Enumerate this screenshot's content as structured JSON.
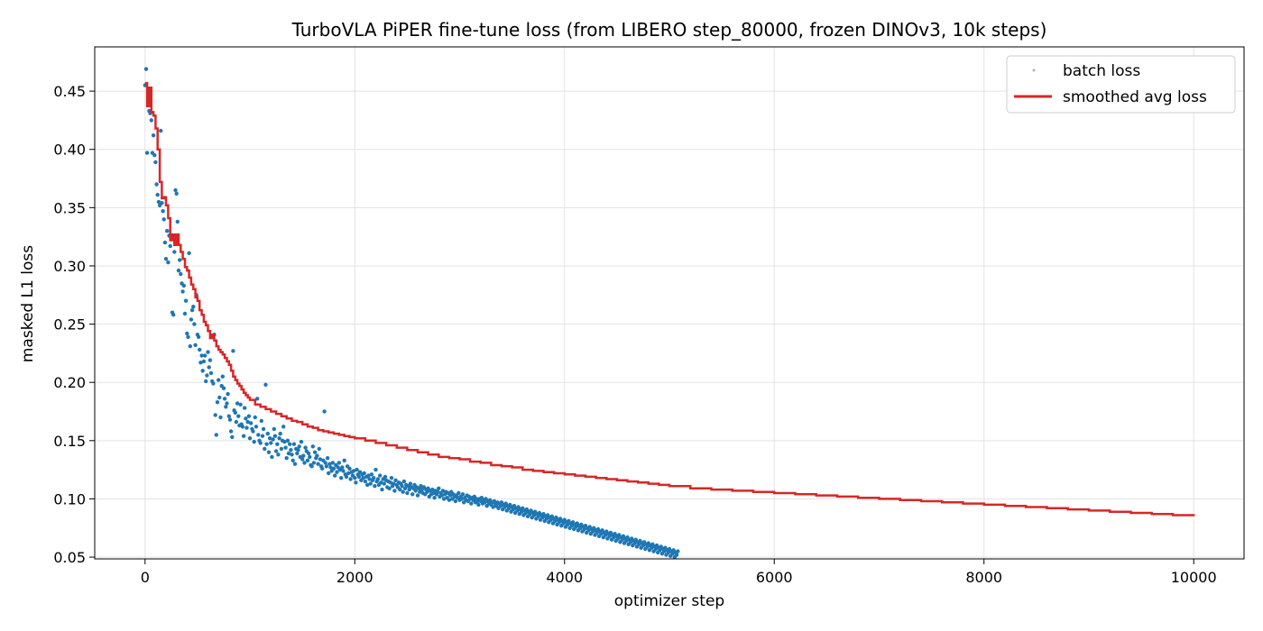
{
  "chart_data": {
    "type": "scatter",
    "title": "TurboVLA PiPER fine-tune loss (from LIBERO step_80000, frozen DINOv3, 10k steps)",
    "xlabel": "optimizer step",
    "ylabel": "masked L1 loss",
    "xlim": [
      -480,
      10480
    ],
    "ylim": [
      0.0485,
      0.488
    ],
    "xticks": [
      0,
      2000,
      4000,
      6000,
      8000,
      10000
    ],
    "xtick_labels": [
      "0",
      "2000",
      "4000",
      "6000",
      "8000",
      "10000"
    ],
    "yticks": [
      0.05,
      0.1,
      0.15,
      0.2,
      0.25,
      0.3,
      0.35,
      0.4,
      0.45
    ],
    "ytick_labels": [
      "0.05",
      "0.10",
      "0.15",
      "0.20",
      "0.25",
      "0.30",
      "0.35",
      "0.40",
      "0.45"
    ],
    "grid": true,
    "legend_position": "top-right",
    "legend": [
      "batch loss",
      "smoothed avg loss"
    ],
    "colors": {
      "batch": "#1f77b4",
      "smoothed": "#d62728",
      "grid": "#e3e3e3"
    },
    "series": [
      {
        "name": "batch loss",
        "kind": "scatter",
        "step_interval": 10,
        "x_start": 0,
        "note_fn": "x = x_start + i*step_interval",
        "values": [
          0.455,
          0.469,
          0.397,
          0.452,
          0.433,
          0.431,
          0.425,
          0.397,
          0.412,
          0.395,
          0.389,
          0.37,
          0.361,
          0.355,
          0.352,
          0.416,
          0.354,
          0.347,
          0.34,
          0.32,
          0.306,
          0.33,
          0.303,
          0.326,
          0.317,
          0.325,
          0.26,
          0.258,
          0.312,
          0.365,
          0.362,
          0.338,
          0.296,
          0.305,
          0.293,
          0.285,
          0.278,
          0.283,
          0.259,
          0.27,
          0.242,
          0.239,
          0.311,
          0.231,
          0.254,
          0.262,
          0.265,
          0.25,
          0.232,
          0.275,
          0.241,
          0.239,
          0.228,
          0.217,
          0.223,
          0.21,
          0.218,
          0.223,
          0.201,
          0.206,
          0.226,
          0.213,
          0.219,
          0.208,
          0.201,
          0.199,
          0.241,
          0.172,
          0.155,
          0.183,
          0.202,
          0.187,
          0.17,
          0.197,
          0.205,
          0.195,
          0.186,
          0.179,
          0.182,
          0.19,
          0.171,
          0.168,
          0.158,
          0.153,
          0.227,
          0.176,
          0.174,
          0.166,
          0.182,
          0.171,
          0.163,
          0.181,
          0.164,
          0.162,
          0.154,
          0.178,
          0.169,
          0.161,
          0.166,
          0.171,
          0.152,
          0.165,
          0.16,
          0.158,
          0.149,
          0.17,
          0.162,
          0.186,
          0.155,
          0.15,
          0.148,
          0.167,
          0.154,
          0.16,
          0.143,
          0.198,
          0.147,
          0.156,
          0.14,
          0.152,
          0.148,
          0.136,
          0.151,
          0.16,
          0.154,
          0.141,
          0.147,
          0.138,
          0.152,
          0.156,
          0.143,
          0.15,
          0.162,
          0.149,
          0.144,
          0.135,
          0.15,
          0.139,
          0.147,
          0.142,
          0.138,
          0.133,
          0.147,
          0.13,
          0.143,
          0.139,
          0.142,
          0.145,
          0.136,
          0.149,
          0.134,
          0.137,
          0.131,
          0.144,
          0.141,
          0.133,
          0.139,
          0.136,
          0.129,
          0.128,
          0.145,
          0.131,
          0.14,
          0.135,
          0.137,
          0.13,
          0.143,
          0.134,
          0.128,
          0.126,
          0.133,
          0.175,
          0.131,
          0.128,
          0.135,
          0.122,
          0.13,
          0.127,
          0.124,
          0.131,
          0.126,
          0.12,
          0.129,
          0.123,
          0.127,
          0.131,
          0.125,
          0.118,
          0.127,
          0.124,
          0.133,
          0.121,
          0.119,
          0.128,
          0.122,
          0.126,
          0.117,
          0.123,
          0.12,
          0.124,
          0.118,
          0.114,
          0.125,
          0.121,
          0.119,
          0.123,
          0.116,
          0.121,
          0.118,
          0.122,
          0.115,
          0.119,
          0.112,
          0.12,
          0.117,
          0.113,
          0.121,
          0.116,
          0.118,
          0.111,
          0.125,
          0.115,
          0.117,
          0.112,
          0.12,
          0.114,
          0.108,
          0.117,
          0.113,
          0.119,
          0.116,
          0.11,
          0.115,
          0.109,
          0.114,
          0.118,
          0.111,
          0.113,
          0.107,
          0.116,
          0.112,
          0.11,
          0.114,
          0.108,
          0.113,
          0.111,
          0.106,
          0.115,
          0.109,
          0.112,
          0.105,
          0.111,
          0.108,
          0.113,
          0.11,
          0.104,
          0.109,
          0.112,
          0.107,
          0.11,
          0.103,
          0.109,
          0.106,
          0.111,
          0.108,
          0.105,
          0.11,
          0.104,
          0.108,
          0.106,
          0.109,
          0.102,
          0.107,
          0.104,
          0.108,
          0.105,
          0.101,
          0.107,
          0.104,
          0.106,
          0.109,
          0.102,
          0.105,
          0.103,
          0.107,
          0.1,
          0.104,
          0.106,
          0.101,
          0.105,
          0.099,
          0.103,
          0.106,
          0.1,
          0.104,
          0.102,
          0.098,
          0.103,
          0.101,
          0.105,
          0.099,
          0.102,
          0.1,
          0.104,
          0.097,
          0.101,
          0.099,
          0.103,
          0.098,
          0.102,
          0.1,
          0.096,
          0.101,
          0.099,
          0.102,
          0.097,
          0.1,
          0.098,
          0.095,
          0.1,
          0.098,
          0.101,
          0.096,
          0.099,
          0.097,
          0.1,
          0.094,
          0.098,
          0.096,
          0.099,
          0.095,
          0.097,
          0.093,
          0.098,
          0.096,
          0.094,
          0.097,
          0.092,
          0.096,
          0.094,
          0.097,
          0.091,
          0.095,
          0.093,
          0.096,
          0.09,
          0.094,
          0.092,
          0.095,
          0.089,
          0.093,
          0.091,
          0.094,
          0.088,
          0.092,
          0.09,
          0.093,
          0.087,
          0.091,
          0.089,
          0.092,
          0.086,
          0.09,
          0.088,
          0.091,
          0.085,
          0.089,
          0.087,
          0.09,
          0.084,
          0.088,
          0.086,
          0.089,
          0.083,
          0.087,
          0.085,
          0.088,
          0.082,
          0.086,
          0.084,
          0.087,
          0.081,
          0.085,
          0.083,
          0.086,
          0.08,
          0.084,
          0.082,
          0.085,
          0.079,
          0.083,
          0.081,
          0.084,
          0.078,
          0.082,
          0.08,
          0.083,
          0.077,
          0.081,
          0.079,
          0.082,
          0.076,
          0.08,
          0.078,
          0.081,
          0.075,
          0.079,
          0.077,
          0.08,
          0.074,
          0.078,
          0.076,
          0.079,
          0.073,
          0.077,
          0.075,
          0.078,
          0.072,
          0.076,
          0.074,
          0.077,
          0.071,
          0.075,
          0.073,
          0.076,
          0.07,
          0.074,
          0.072,
          0.075,
          0.069,
          0.073,
          0.071,
          0.074,
          0.068,
          0.072,
          0.07,
          0.073,
          0.067,
          0.071,
          0.069,
          0.072,
          0.066,
          0.07,
          0.068,
          0.071,
          0.065,
          0.069,
          0.067,
          0.07,
          0.064,
          0.068,
          0.066,
          0.069,
          0.063,
          0.067,
          0.065,
          0.068,
          0.062,
          0.066,
          0.064,
          0.067,
          0.061,
          0.065,
          0.063,
          0.066,
          0.06,
          0.064,
          0.062,
          0.065,
          0.059,
          0.063,
          0.061,
          0.064,
          0.058,
          0.062,
          0.06,
          0.063,
          0.057,
          0.061,
          0.059,
          0.062,
          0.056,
          0.06,
          0.058,
          0.061,
          0.055,
          0.059,
          0.057,
          0.06,
          0.054,
          0.058,
          0.056,
          0.059,
          0.053,
          0.057,
          0.055,
          0.058,
          0.052,
          0.056,
          0.054,
          0.057,
          0.051,
          0.055,
          0.053,
          0.056,
          0.05,
          0.054,
          0.052,
          0.055
        ]
      },
      {
        "name": "smoothed avg loss",
        "kind": "step-line",
        "x": [
          0,
          20,
          40,
          60,
          80,
          100,
          120,
          140,
          160,
          180,
          200,
          220,
          240,
          260,
          280,
          300,
          320,
          340,
          360,
          380,
          400,
          420,
          440,
          460,
          480,
          500,
          520,
          540,
          560,
          580,
          600,
          620,
          640,
          660,
          680,
          700,
          720,
          740,
          760,
          780,
          800,
          820,
          840,
          860,
          880,
          900,
          920,
          940,
          960,
          980,
          1000,
          1050,
          1100,
          1150,
          1200,
          1250,
          1300,
          1350,
          1400,
          1450,
          1500,
          1550,
          1600,
          1650,
          1700,
          1750,
          1800,
          1850,
          1900,
          1950,
          2000,
          2100,
          2200,
          2300,
          2400,
          2500,
          2600,
          2700,
          2800,
          2900,
          3000,
          3100,
          3200,
          3300,
          3400,
          3500,
          3600,
          3700,
          3800,
          3900,
          4000,
          4100,
          4200,
          4300,
          4400,
          4500,
          4600,
          4700,
          4800,
          4900,
          5000,
          5200,
          5400,
          5600,
          5800,
          6000,
          6200,
          6400,
          6600,
          6800,
          7000,
          7200,
          7400,
          7600,
          7800,
          8000,
          8200,
          8400,
          8600,
          8800,
          9000,
          9200,
          9400,
          9600,
          9800,
          10000
        ],
        "values": [
          0.457,
          0.437,
          0.453,
          0.432,
          0.429,
          0.418,
          0.4,
          0.372,
          0.358,
          0.359,
          0.352,
          0.341,
          0.322,
          0.327,
          0.318,
          0.327,
          0.318,
          0.312,
          0.306,
          0.299,
          0.296,
          0.29,
          0.284,
          0.28,
          0.273,
          0.27,
          0.262,
          0.258,
          0.252,
          0.249,
          0.244,
          0.238,
          0.241,
          0.236,
          0.231,
          0.228,
          0.226,
          0.224,
          0.221,
          0.218,
          0.215,
          0.21,
          0.205,
          0.202,
          0.199,
          0.197,
          0.194,
          0.191,
          0.189,
          0.187,
          0.185,
          0.181,
          0.179,
          0.177,
          0.175,
          0.173,
          0.171,
          0.169,
          0.167,
          0.166,
          0.164,
          0.162,
          0.161,
          0.159,
          0.158,
          0.157,
          0.156,
          0.155,
          0.154,
          0.153,
          0.152,
          0.15,
          0.148,
          0.146,
          0.144,
          0.142,
          0.14,
          0.138,
          0.136,
          0.135,
          0.134,
          0.132,
          0.131,
          0.129,
          0.128,
          0.127,
          0.125,
          0.124,
          0.123,
          0.122,
          0.121,
          0.12,
          0.119,
          0.118,
          0.117,
          0.116,
          0.115,
          0.114,
          0.113,
          0.112,
          0.111,
          0.109,
          0.108,
          0.107,
          0.106,
          0.105,
          0.104,
          0.103,
          0.102,
          0.101,
          0.1,
          0.099,
          0.098,
          0.097,
          0.096,
          0.095,
          0.094,
          0.093,
          0.092,
          0.091,
          0.09,
          0.089,
          0.088,
          0.087,
          0.086,
          0.085
        ]
      }
    ]
  }
}
